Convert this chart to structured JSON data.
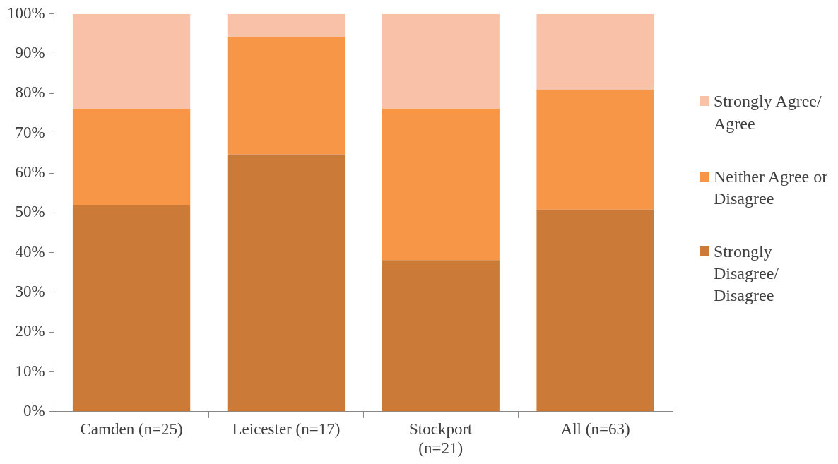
{
  "chart_data": {
    "type": "bar",
    "stacked": true,
    "categories": [
      "Camden (n=25)",
      "Leicester (n=17)",
      "Stockport\n(n=21)",
      "All (n=63)"
    ],
    "series": [
      {
        "name": "Strongly Disagree/ Disagree",
        "color": "#cc7a38",
        "values": [
          52,
          64.7,
          38.1,
          50.8
        ]
      },
      {
        "name": "Neither Agree or Disagree",
        "color": "#f79646",
        "values": [
          24,
          29.4,
          38.1,
          30.2
        ]
      },
      {
        "name": "Strongly Agree/ Agree",
        "color": "#f9c2a8",
        "values": [
          24,
          5.9,
          23.8,
          19
        ]
      }
    ],
    "ylim": [
      0,
      100
    ],
    "yticks": [
      {
        "value": 0,
        "label": "0%"
      },
      {
        "value": 10,
        "label": "10%"
      },
      {
        "value": 20,
        "label": "20%"
      },
      {
        "value": 30,
        "label": "30%"
      },
      {
        "value": 40,
        "label": "40%"
      },
      {
        "value": 50,
        "label": "50%"
      },
      {
        "value": 60,
        "label": "60%"
      },
      {
        "value": 70,
        "label": "70%"
      },
      {
        "value": 80,
        "label": "80%"
      },
      {
        "value": 90,
        "label": "90%"
      },
      {
        "value": 100,
        "label": "100%"
      }
    ],
    "grid": false,
    "legend": "right"
  }
}
